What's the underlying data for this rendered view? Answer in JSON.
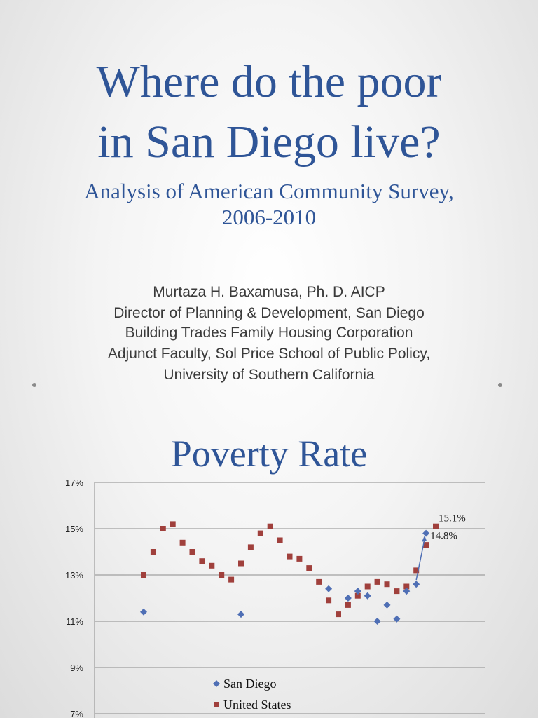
{
  "slide1": {
    "title_line1": "Where do the poor",
    "title_line2": "in San Diego live?",
    "subtitle_line1": "Analysis of American Community Survey,",
    "subtitle_line2": "2006-2010",
    "author_lines": [
      "Murtaza H. Baxamusa, Ph. D. AICP",
      "Director of Planning & Development, San Diego",
      "Building Trades Family Housing Corporation",
      "Adjunct Faculty, Sol Price School of Public Policy,",
      "University of Southern California"
    ]
  },
  "slide2": {
    "title": "Poverty Rate"
  },
  "colors": {
    "title_blue": "#2f5597",
    "san_diego": "#4f6fb5",
    "united_states": "#a0403c",
    "grid": "#8c8c8c"
  },
  "chart_data": {
    "type": "scatter",
    "title": "Poverty Rate",
    "ylim": [
      7,
      17
    ],
    "ytick_labels": [
      "17%",
      "15%",
      "13%",
      "11%",
      "9%",
      "7%"
    ],
    "yticks": [
      17,
      15,
      13,
      11,
      9,
      7
    ],
    "grid": true,
    "legend_position": "bottom-center",
    "x_count": 31,
    "series": [
      {
        "name": "San Diego",
        "marker": "diamond",
        "points": [
          {
            "x": 1,
            "y": 11.4
          },
          {
            "x": 11,
            "y": 11.3
          },
          {
            "x": 20,
            "y": 12.4
          },
          {
            "x": 22,
            "y": 12.0
          },
          {
            "x": 23,
            "y": 12.3
          },
          {
            "x": 24,
            "y": 12.1
          },
          {
            "x": 25,
            "y": 11.0
          },
          {
            "x": 26,
            "y": 11.7
          },
          {
            "x": 27,
            "y": 11.1
          },
          {
            "x": 28,
            "y": 12.3
          },
          {
            "x": 29,
            "y": 12.6
          },
          {
            "x": 30,
            "y": 14.8
          }
        ]
      },
      {
        "name": "United States",
        "marker": "square",
        "points": [
          {
            "x": 1,
            "y": 13.0
          },
          {
            "x": 2,
            "y": 14.0
          },
          {
            "x": 3,
            "y": 15.0
          },
          {
            "x": 4,
            "y": 15.2
          },
          {
            "x": 5,
            "y": 14.4
          },
          {
            "x": 6,
            "y": 14.0
          },
          {
            "x": 7,
            "y": 13.6
          },
          {
            "x": 8,
            "y": 13.4
          },
          {
            "x": 9,
            "y": 13.0
          },
          {
            "x": 10,
            "y": 12.8
          },
          {
            "x": 11,
            "y": 13.5
          },
          {
            "x": 12,
            "y": 14.2
          },
          {
            "x": 13,
            "y": 14.8
          },
          {
            "x": 14,
            "y": 15.1
          },
          {
            "x": 15,
            "y": 14.5
          },
          {
            "x": 16,
            "y": 13.8
          },
          {
            "x": 17,
            "y": 13.7
          },
          {
            "x": 18,
            "y": 13.3
          },
          {
            "x": 19,
            "y": 12.7
          },
          {
            "x": 20,
            "y": 11.9
          },
          {
            "x": 21,
            "y": 11.3
          },
          {
            "x": 22,
            "y": 11.7
          },
          {
            "x": 23,
            "y": 12.1
          },
          {
            "x": 24,
            "y": 12.5
          },
          {
            "x": 25,
            "y": 12.7
          },
          {
            "x": 26,
            "y": 12.6
          },
          {
            "x": 27,
            "y": 12.3
          },
          {
            "x": 28,
            "y": 12.5
          },
          {
            "x": 29,
            "y": 13.2
          },
          {
            "x": 30,
            "y": 14.3
          },
          {
            "x": 31,
            "y": 15.1
          }
        ]
      }
    ],
    "annotations": [
      {
        "text": "15.1%",
        "series": "United States",
        "x": 31,
        "y": 15.1
      },
      {
        "text": "14.8%",
        "series": "San Diego",
        "x": 30,
        "y": 14.8
      }
    ],
    "arrow": {
      "from": {
        "x": 29,
        "y": 12.6
      },
      "to": {
        "x": 30,
        "y": 14.8
      }
    }
  }
}
